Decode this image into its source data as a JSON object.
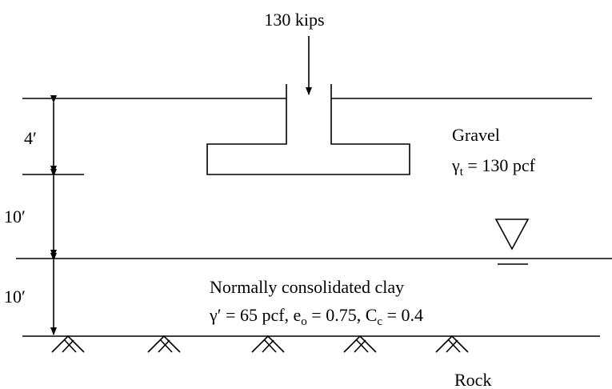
{
  "load": {
    "label": "130 kips"
  },
  "dimensions": [
    "4′",
    "10′",
    "10′"
  ],
  "gravel": {
    "name": "Gravel",
    "unit_weight": {
      "symbol": "γ",
      "subscript": "t",
      "rest": " = 130 pcf"
    }
  },
  "clay": {
    "name": "Normally consolidated clay",
    "properties": [
      {
        "text": "γ′ = 65 pcf, e"
      },
      {
        "subscript": "o"
      },
      {
        "text": " = 0.75, C"
      },
      {
        "subscript": "c"
      },
      {
        "text": " = 0.4"
      }
    ]
  },
  "rock": {
    "name": "Rock"
  }
}
